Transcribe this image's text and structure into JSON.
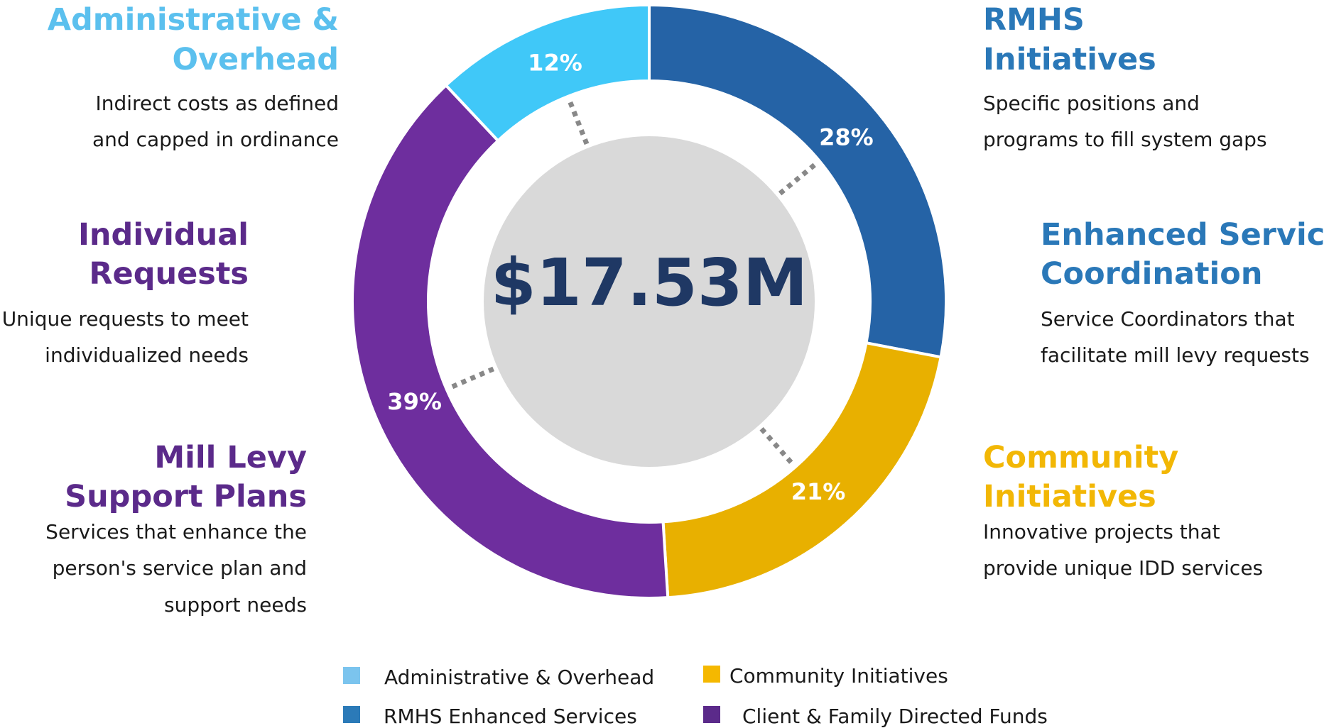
{
  "chart_data": {
    "type": "donut",
    "center_label": "$17.53M",
    "categories": [
      "RMHS Enhanced Services",
      "Community Initiatives",
      "Client & Family Directed Funds",
      "Administrative & Overhead"
    ],
    "values": [
      28,
      21,
      39,
      12
    ],
    "value_labels": [
      "28%",
      "21%",
      "39%",
      "12%"
    ],
    "colors": [
      "#2563a6",
      "#e8b000",
      "#6e2e9e",
      "#40c8f8"
    ],
    "legend_colors": [
      "#2b7ab8",
      "#f5b800",
      "#5b2a8a",
      "#7bc4ee"
    ],
    "annotations": [
      {
        "title": [
          "Administrative &",
          "Overhead"
        ],
        "text": [
          "Indirect costs as defined",
          "and capped in ordinance"
        ],
        "color": "#5bc0ee"
      },
      {
        "title": [
          "RMHS",
          "Initiatives"
        ],
        "text": [
          "Specific positions and",
          "programs to fill system gaps"
        ],
        "color": "#2a78b8"
      },
      {
        "title": [
          "Individual",
          "Requests"
        ],
        "text": [
          "Unique requests to meet",
          "individualized needs"
        ],
        "color": "#5b2a8a"
      },
      {
        "title": [
          "Enhanced Service",
          "Coordination"
        ],
        "text": [
          "Service Coordinators that",
          "facilitate mill levy requests"
        ],
        "color": "#2a78b8"
      },
      {
        "title": [
          "Mill Levy",
          "Support Plans"
        ],
        "text": [
          "Services that enhance the",
          "person's service plan and",
          "support needs"
        ],
        "color": "#5b2a8a"
      },
      {
        "title": [
          "Community",
          "Initiatives"
        ],
        "text": [
          "Innovative projects that",
          "provide unique IDD services"
        ],
        "color": "#f2b705"
      }
    ]
  }
}
